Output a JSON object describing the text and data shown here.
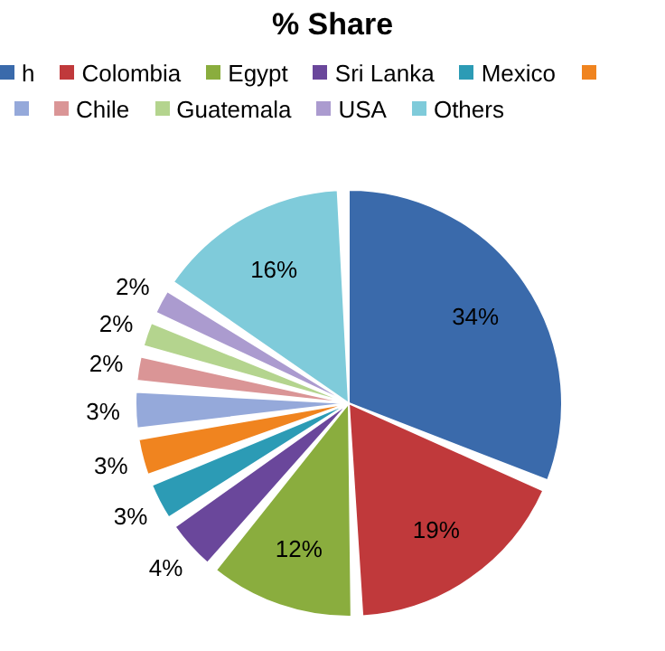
{
  "chart_data": {
    "type": "pie",
    "title": "% Share",
    "categories": [
      "h",
      "Colombia",
      "Egypt",
      "Sri Lanka",
      "Mexico",
      null,
      null,
      "Chile",
      "Guatemala",
      "USA",
      "Others"
    ],
    "values": [
      34,
      19,
      12,
      4,
      3,
      3,
      3,
      2,
      2,
      2,
      16
    ],
    "value_labels": [
      "34%",
      "19%",
      "12%",
      "4%",
      "3%",
      "3%",
      "3%",
      "2%",
      "2%",
      "2%",
      "16%"
    ],
    "colors": [
      "#3a6aab",
      "#c0393b",
      "#8aad3e",
      "#6a479b",
      "#2c9bb5",
      "#f0841f",
      "#95a9da",
      "#da9596",
      "#b4d48e",
      "#ab9bcf",
      "#7fcbda"
    ],
    "legend": "top"
  }
}
